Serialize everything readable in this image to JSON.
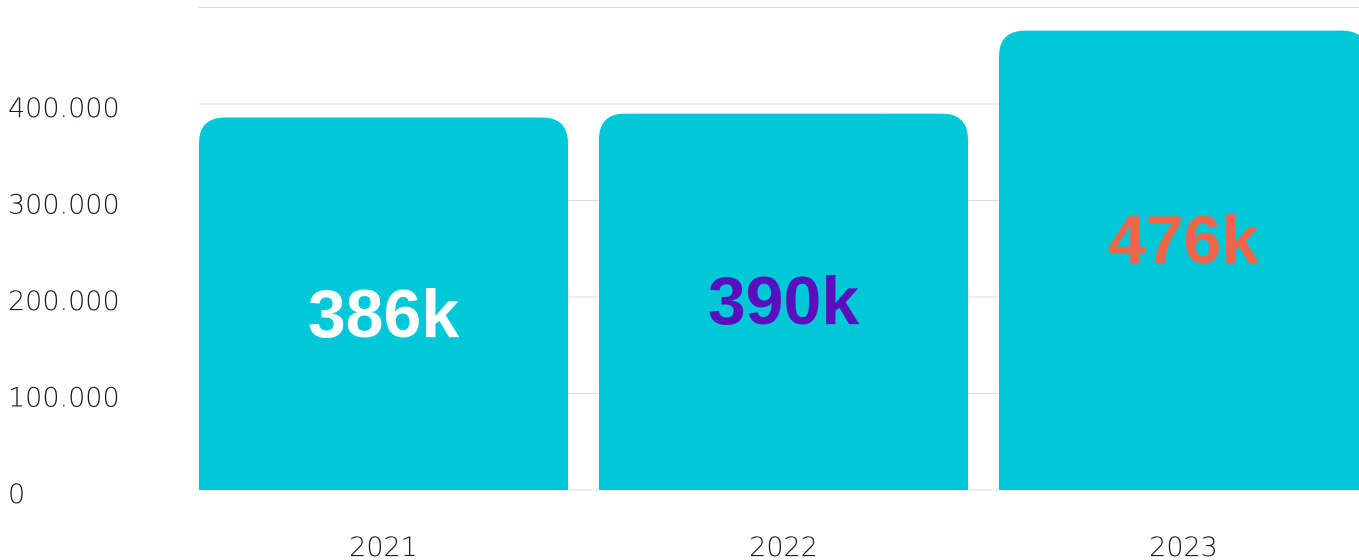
{
  "chart_data": {
    "type": "bar",
    "title": "",
    "xlabel": "",
    "ylabel": "",
    "categories": [
      "2021",
      "2022",
      "2023"
    ],
    "values": [
      386000,
      390000,
      476000
    ],
    "data_labels": [
      "386k",
      "390k",
      "476k"
    ],
    "ylim": [
      0,
      500000
    ],
    "yticks": [
      0,
      100000,
      200000,
      300000,
      400000
    ],
    "ytick_labels": [
      "0",
      "100.000",
      "200.000",
      "300.000",
      "400.000"
    ],
    "grid": true,
    "legend": "none",
    "colors": {
      "bar": "#00c8d9",
      "labels": [
        "#ffffff",
        "#5a0fbf",
        "#f06449"
      ]
    }
  }
}
